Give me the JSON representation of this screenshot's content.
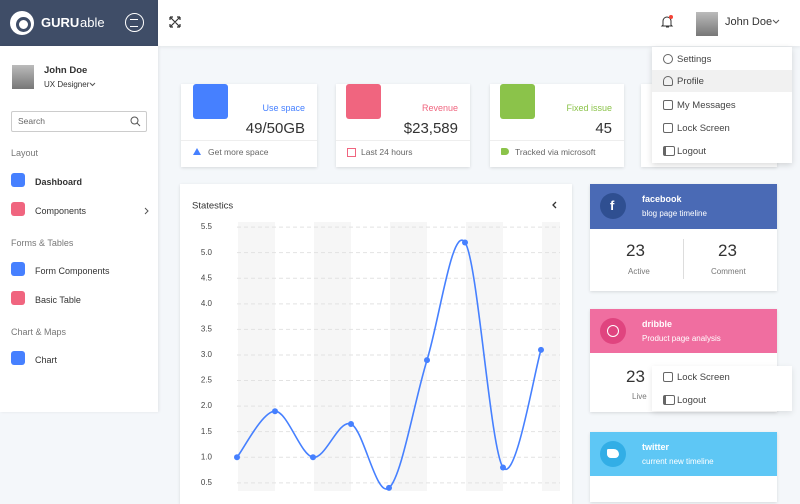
{
  "header": {
    "logo_bold": "GURU",
    "logo_light": "able",
    "user_name": "John Doe"
  },
  "user_menu": [
    "Settings",
    "Profile",
    "My Messages",
    "Lock Screen",
    "Logout"
  ],
  "overlay_menu": [
    "Lock Screen",
    "Logout"
  ],
  "sidebar": {
    "user_name": "John Doe",
    "user_role": "UX Designer",
    "search_placeholder": "Search",
    "sections": [
      {
        "title": "Layout",
        "items": [
          "Dashboard",
          "Components"
        ]
      },
      {
        "title": "Forms & Tables",
        "items": [
          "Form Components",
          "Basic Table"
        ]
      },
      {
        "title": "Chart & Maps",
        "items": [
          "Chart"
        ]
      }
    ]
  },
  "stat_cards": [
    {
      "title": "Use space",
      "value": "49/50GB",
      "footer": "Get more space"
    },
    {
      "title": "Revenue",
      "value": "$23,589",
      "footer": "Last 24 hours"
    },
    {
      "title": "Fixed issue",
      "value": 45,
      "footer": "Tracked via microsoft"
    }
  ],
  "chart_data": {
    "type": "line",
    "title": "Statestics",
    "color": "#4680ff",
    "grid": true,
    "values": [
      1.0,
      1.9,
      1.0,
      1.65,
      0.4,
      2.9,
      5.2,
      0.8,
      3.1
    ],
    "ylim": [
      0.34,
      5.6
    ],
    "yticks": [
      0.5,
      {
        "value": 1,
        "label": "1.0"
      },
      1.5,
      {
        "value": 2,
        "label": "2.0"
      },
      2.5,
      {
        "value": 3,
        "label": "3.0"
      },
      3.5,
      {
        "value": 4,
        "label": "4.0"
      },
      4.5,
      {
        "value": 5,
        "label": "5.0"
      },
      5.5
    ]
  },
  "social_cards": [
    {
      "name": "facebook",
      "subtitle": "blog page timeline",
      "stats": [
        {
          "value": 23,
          "label": "Active"
        },
        {
          "value": 23,
          "label": "Comment"
        }
      ]
    },
    {
      "name": "dribble",
      "subtitle": "Product page analysis",
      "stats": [
        {
          "value": 23,
          "label": "Live"
        }
      ]
    },
    {
      "name": "twitter",
      "subtitle": "current new timeline"
    }
  ]
}
